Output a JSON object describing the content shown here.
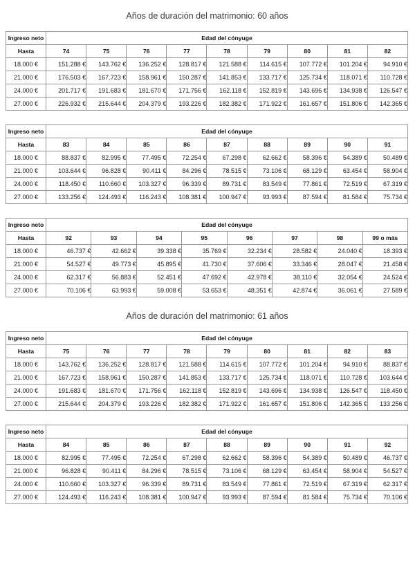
{
  "colors": {
    "page_background": "#ffffff",
    "table_border": "#969696",
    "body_text": "#1c1c1c",
    "title_text": "#3a3a3a"
  },
  "document": {
    "sections": [
      {
        "title": "Años de duración del matrimonio: 60 años",
        "tables": [
          {
            "corner_label": "Ingreso neto",
            "span_header": "Edad del cónyuge",
            "row_label_header": "Hasta",
            "age_columns": [
              "74",
              "75",
              "76",
              "77",
              "78",
              "79",
              "80",
              "81",
              "82"
            ],
            "rows": [
              {
                "income": "18.000 €",
                "values": [
                  "151.288 €",
                  "143.762 €",
                  "136.252 €",
                  "128.817 €",
                  "121.588 €",
                  "114.615 €",
                  "107.772 €",
                  "101.204 €",
                  "94.910 €"
                ]
              },
              {
                "income": "21.000 €",
                "values": [
                  "176.503 €",
                  "167.723 €",
                  "158.961 €",
                  "150.287 €",
                  "141.853 €",
                  "133.717 €",
                  "125.734 €",
                  "118.071 €",
                  "110.728 €"
                ]
              },
              {
                "income": "24.000 €",
                "values": [
                  "201.717 €",
                  "191.683 €",
                  "181.670 €",
                  "171.756 €",
                  "162.118 €",
                  "152.819 €",
                  "143.696 €",
                  "134.938 €",
                  "126.547 €"
                ]
              },
              {
                "income": "27.000 €",
                "values": [
                  "226.932 €",
                  "215.644 €",
                  "204.379 €",
                  "193.226 €",
                  "182.382 €",
                  "171.922 €",
                  "161.657 €",
                  "151.806 €",
                  "142.365 €"
                ]
              }
            ]
          },
          {
            "corner_label": "Ingreso neto",
            "span_header": "Edad del cónyuge",
            "row_label_header": "Hasta",
            "age_columns": [
              "83",
              "84",
              "85",
              "86",
              "87",
              "88",
              "89",
              "90",
              "91"
            ],
            "rows": [
              {
                "income": "18.000 €",
                "values": [
                  "88.837 €",
                  "82.995 €",
                  "77.495 €",
                  "72.254 €",
                  "67.298 €",
                  "62.662 €",
                  "58.396 €",
                  "54.389 €",
                  "50.489 €"
                ]
              },
              {
                "income": "21.000 €",
                "values": [
                  "103.644 €",
                  "96.828 €",
                  "90.411 €",
                  "84.296 €",
                  "78.515 €",
                  "73.106 €",
                  "68.129 €",
                  "63.454 €",
                  "58.904 €"
                ]
              },
              {
                "income": "24.000 €",
                "values": [
                  "118.450 €",
                  "110.660 €",
                  "103.327 €",
                  "96.339 €",
                  "89.731 €",
                  "83.549 €",
                  "77.861 €",
                  "72.519 €",
                  "67.319 €"
                ]
              },
              {
                "income": "27.000 €",
                "values": [
                  "133.256 €",
                  "124.493 €",
                  "116.243 €",
                  "108.381 €",
                  "100.947 €",
                  "93.993 €",
                  "87.594 €",
                  "81.584 €",
                  "75.734 €"
                ]
              }
            ]
          },
          {
            "corner_label": "Ingreso neto",
            "span_header": "Edad del cónyuge",
            "row_label_header": "Hasta",
            "age_columns": [
              "92",
              "93",
              "94",
              "95",
              "96",
              "97",
              "98",
              "99 o más"
            ],
            "rows": [
              {
                "income": "18.000 €",
                "values": [
                  "46.737 €",
                  "42.662 €",
                  "39.338 €",
                  "35.769 €",
                  "32.234 €",
                  "28.582 €",
                  "24.040 €",
                  "18.393 €"
                ]
              },
              {
                "income": "21.000 €",
                "values": [
                  "54.527 €",
                  "49.773 €",
                  "45.895 €",
                  "41.730 €",
                  "37.606 €",
                  "33.346 €",
                  "28.047 €",
                  "21.458 €"
                ]
              },
              {
                "income": "24.000 €",
                "values": [
                  "62.317 €",
                  "56.883 €",
                  "52.451 €",
                  "47.692 €",
                  "42.978 €",
                  "38.110 €",
                  "32.054 €",
                  "24.524 €"
                ]
              },
              {
                "income": "27.000 €",
                "values": [
                  "70.106 €",
                  "63.993 €",
                  "59.008 €",
                  "53.653 €",
                  "48.351 €",
                  "42.874 €",
                  "36.061 €",
                  "27.589 €"
                ]
              }
            ]
          }
        ]
      },
      {
        "title": "Años de duración del matrimonio: 61 años",
        "tables": [
          {
            "corner_label": "Ingreso neto",
            "span_header": "Edad del cónyuge",
            "row_label_header": "Hasta",
            "age_columns": [
              "75",
              "76",
              "77",
              "78",
              "79",
              "80",
              "81",
              "82",
              "83"
            ],
            "rows": [
              {
                "income": "18.000 €",
                "values": [
                  "143.762 €",
                  "136.252 €",
                  "128.817 €",
                  "121.588 €",
                  "114.615 €",
                  "107.772 €",
                  "101.204 €",
                  "94.910 €",
                  "88.837 €"
                ]
              },
              {
                "income": "21.000 €",
                "values": [
                  "167.723 €",
                  "158.961 €",
                  "150.287 €",
                  "141.853 €",
                  "133.717 €",
                  "125.734 €",
                  "118.071 €",
                  "110.728 €",
                  "103.644 €"
                ]
              },
              {
                "income": "24.000 €",
                "values": [
                  "191.683 €",
                  "181.670 €",
                  "171.756 €",
                  "162.118 €",
                  "152.819 €",
                  "143.696 €",
                  "134.938 €",
                  "126.547 €",
                  "118.450 €"
                ]
              },
              {
                "income": "27.000 €",
                "values": [
                  "215.644 €",
                  "204.379 €",
                  "193.226 €",
                  "182.382 €",
                  "171.922 €",
                  "161.657 €",
                  "151.806 €",
                  "142.365 €",
                  "133.256 €"
                ]
              }
            ]
          },
          {
            "corner_label": "Ingreso neto",
            "span_header": "Edad del cónyuge",
            "row_label_header": "Hasta",
            "age_columns": [
              "84",
              "85",
              "86",
              "87",
              "88",
              "89",
              "90",
              "91",
              "92"
            ],
            "rows": [
              {
                "income": "18.000 €",
                "values": [
                  "82.995 €",
                  "77.495 €",
                  "72.254 €",
                  "67.298 €",
                  "62.662 €",
                  "58.396 €",
                  "54.389 €",
                  "50.489 €",
                  "46.737 €"
                ]
              },
              {
                "income": "21.000 €",
                "values": [
                  "96.828 €",
                  "90.411 €",
                  "84.296 €",
                  "78.515 €",
                  "73.106 €",
                  "68.129 €",
                  "63.454 €",
                  "58.904 €",
                  "54.527 €"
                ]
              },
              {
                "income": "24.000 €",
                "values": [
                  "110.660 €",
                  "103.327 €",
                  "96.339 €",
                  "89.731 €",
                  "83.549 €",
                  "77.861 €",
                  "72.519 €",
                  "67.319 €",
                  "62.317 €"
                ]
              },
              {
                "income": "27.000 €",
                "values": [
                  "124.493 €",
                  "116.243 €",
                  "108.381 €",
                  "100.947 €",
                  "93.993 €",
                  "87.594 €",
                  "81.584 €",
                  "75.734 €",
                  "70.106 €"
                ]
              }
            ]
          }
        ]
      }
    ]
  }
}
